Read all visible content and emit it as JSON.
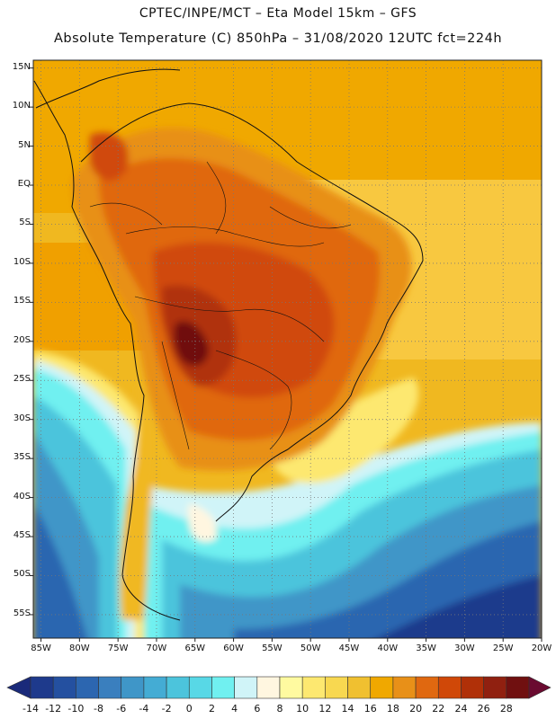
{
  "header": {
    "line1": "CPTEC/INPE/MCT –  Eta Model 15km – GFS",
    "line2": "Absolute Temperature (C) 850hPa – 31/08/2020 12UTC fct=224h"
  },
  "map": {
    "lat_range": [
      -58,
      16
    ],
    "lon_range": [
      -86,
      -20
    ],
    "lat_labels": [
      {
        "lat": 15,
        "text": "15N"
      },
      {
        "lat": 10,
        "text": "10N"
      },
      {
        "lat": 5,
        "text": "5N"
      },
      {
        "lat": 0,
        "text": "EQ"
      },
      {
        "lat": -5,
        "text": "5S"
      },
      {
        "lat": -10,
        "text": "10S"
      },
      {
        "lat": -15,
        "text": "15S"
      },
      {
        "lat": -20,
        "text": "20S"
      },
      {
        "lat": -25,
        "text": "25S"
      },
      {
        "lat": -30,
        "text": "30S"
      },
      {
        "lat": -35,
        "text": "35S"
      },
      {
        "lat": -40,
        "text": "40S"
      },
      {
        "lat": -45,
        "text": "45S"
      },
      {
        "lat": -50,
        "text": "50S"
      },
      {
        "lat": -55,
        "text": "55S"
      }
    ],
    "lon_labels": [
      {
        "lon": -85,
        "text": "85W"
      },
      {
        "lon": -80,
        "text": "80W"
      },
      {
        "lon": -75,
        "text": "75W"
      },
      {
        "lon": -70,
        "text": "70W"
      },
      {
        "lon": -65,
        "text": "65W"
      },
      {
        "lon": -60,
        "text": "60W"
      },
      {
        "lon": -55,
        "text": "55W"
      },
      {
        "lon": -50,
        "text": "50W"
      },
      {
        "lon": -45,
        "text": "45W"
      },
      {
        "lon": -40,
        "text": "40W"
      },
      {
        "lon": -35,
        "text": "35W"
      },
      {
        "lon": -30,
        "text": "30W"
      },
      {
        "lon": -25,
        "text": "25W"
      },
      {
        "lon": -20,
        "text": "20W"
      }
    ]
  },
  "colorbar": {
    "labels": [
      "-14",
      "-12",
      "-10",
      "-8",
      "-6",
      "-4",
      "-2",
      "0",
      "2",
      "4",
      "6",
      "8",
      "10",
      "12",
      "14",
      "16",
      "18",
      "20",
      "22",
      "24",
      "26",
      "28"
    ],
    "colors": [
      "#1e3a8c",
      "#2450a0",
      "#2c66b0",
      "#3a7fbe",
      "#3f96c8",
      "#44acd4",
      "#4cc4dc",
      "#58d8e6",
      "#70f0f0",
      "#d0f4f8",
      "#fff6e0",
      "#fffaa0",
      "#fde870",
      "#f8d850",
      "#f0c030",
      "#f0a800",
      "#e89018",
      "#e06810",
      "#d04808",
      "#b03008",
      "#902010",
      "#701010"
    ],
    "low_color": "#1a2a7a",
    "high_color": "#6a0a30"
  }
}
